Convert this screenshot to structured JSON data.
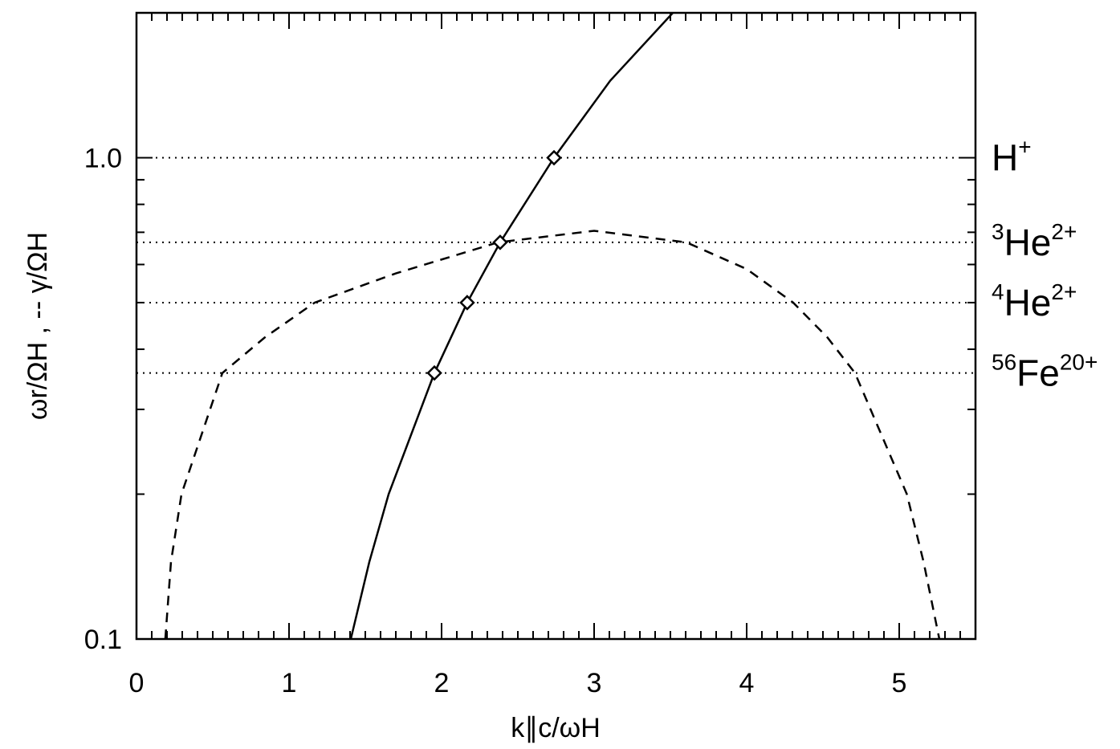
{
  "chart_data": {
    "type": "line",
    "xlabel": "k∥c/ωH",
    "ylabel": "ωr/ΩH ,  -- γ/ΩH",
    "xlim": [
      0,
      5.5
    ],
    "ylim": [
      0.1,
      2.0
    ],
    "yscale": "log",
    "xticks": [
      0,
      1,
      2,
      3,
      4,
      5
    ],
    "yticks": [
      0.1,
      {
        "value": 1.0,
        "label": "1.0"
      }
    ],
    "xminorticks": [
      0.1,
      0.2,
      0.3,
      0.4,
      0.5,
      0.6,
      0.7,
      0.8,
      0.9,
      1.1,
      1.2,
      1.3,
      1.4,
      1.5,
      1.6,
      1.7,
      1.8,
      1.9,
      2.1,
      2.2,
      2.3,
      2.4,
      2.5,
      2.6,
      2.7,
      2.8,
      2.9,
      3.1,
      3.2,
      3.3,
      3.4,
      3.5,
      3.6,
      3.7,
      3.8,
      3.9,
      4.1,
      4.2,
      4.3,
      4.4,
      4.5,
      4.6,
      4.7,
      4.8,
      4.9,
      5.1,
      5.2,
      5.3,
      5.4
    ],
    "yminorticks": [
      0.2,
      0.3,
      0.4,
      0.5,
      0.6,
      0.7,
      0.8,
      0.9
    ],
    "series": [
      {
        "style": "solid",
        "color": "#000000",
        "x": [
          1.405,
          1.526,
          1.653,
          1.953,
          2.168,
          2.384,
          2.737,
          3.105,
          3.516
        ],
        "values": [
          0.1,
          0.1445,
          0.2,
          0.357,
          0.5,
          0.667,
          1.0,
          1.445,
          2.0
        ]
      },
      {
        "style": "dashed",
        "color": "#000000",
        "x": [
          0.189,
          0.226,
          0.295,
          0.563,
          0.84,
          1.168,
          1.7,
          2.37,
          3.0,
          3.605,
          4.0,
          4.305,
          4.53,
          4.71,
          5.05,
          5.16,
          5.263
        ],
        "values": [
          0.1,
          0.1445,
          0.2,
          0.357,
          0.423,
          0.5,
          0.575,
          0.667,
          0.705,
          0.667,
          0.587,
          0.5,
          0.423,
          0.357,
          0.2,
          0.1445,
          0.1
        ]
      },
      {
        "style": "markers",
        "marker": "diamond",
        "color": "#000000",
        "x": [
          1.953,
          2.168,
          2.384,
          2.737
        ],
        "values": [
          0.357,
          0.5,
          0.667,
          1.0
        ]
      }
    ],
    "hlines": [
      {
        "value": 1.0,
        "element": "H",
        "charge": "+"
      },
      {
        "value": 0.667,
        "mass": "3",
        "element": "He",
        "charge": "2+"
      },
      {
        "value": 0.5,
        "mass": "4",
        "element": "He",
        "charge": "2+"
      },
      {
        "value": 0.357,
        "mass": "56",
        "element": "Fe",
        "charge": "20+"
      }
    ],
    "hline_style": "dotted"
  }
}
